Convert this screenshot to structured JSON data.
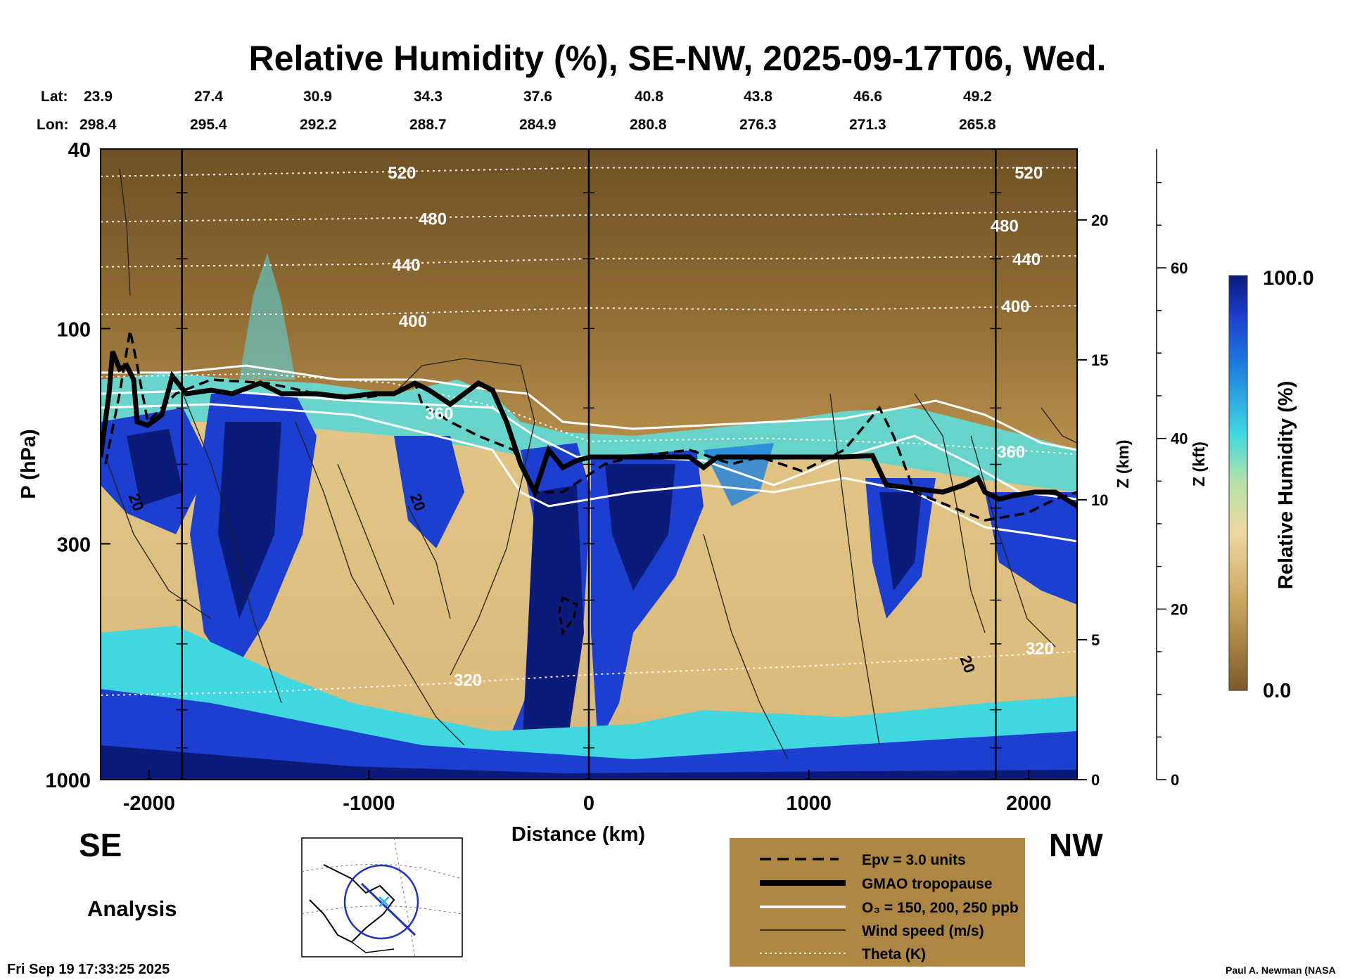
{
  "title": "Relative Humidity (%), SE-NW, 2025-09-17T06, Wed.",
  "lat_label": "Lat:",
  "lon_label": "Lon:",
  "lat_values": [
    "23.9",
    "27.4",
    "30.9",
    "34.3",
    "37.6",
    "40.8",
    "43.8",
    "46.6",
    "49.2"
  ],
  "lon_values": [
    "298.4",
    "295.4",
    "292.2",
    "288.7",
    "284.9",
    "280.8",
    "276.3",
    "271.3",
    "265.8"
  ],
  "side_left": "SE",
  "side_right": "NW",
  "analysis_label": "Analysis",
  "timestamp": "Fri Sep 19 17:33:25 2025",
  "credit": "Paul A. Newman (NASA",
  "colors": {
    "dry": "#7a5a28",
    "tan": "#e4c98c",
    "cyan": "#3fd8e0",
    "blue": "#1c3fd0",
    "navy": "#0c1a7a",
    "legend_bg": "#ad8642"
  },
  "legend": [
    {
      "label": "Epv = 3.0 units",
      "style": "dashed-black"
    },
    {
      "label": "GMAO tropopause",
      "style": "thick-black"
    },
    {
      "label": "O₃ = 150, 200, 250 ppb",
      "style": "white"
    },
    {
      "label": "Wind speed (m/s)",
      "style": "thin-black"
    },
    {
      "label": "Theta (K)",
      "style": "dotted-white"
    }
  ],
  "chart_data": {
    "type": "heatmap",
    "title": "Relative Humidity (%), SE-NW, 2025-09-17T06, Wed.",
    "xlabel": "Distance (km)",
    "ylabel": "P (hPa)",
    "y2label": "Z (km)",
    "y3label": "Z (kft)",
    "colorbar_label": "Relative Humidity (%)",
    "colorbar_range": [
      0.0,
      100.0
    ],
    "colorbar_tick_labels": [
      "100.0",
      "0.0"
    ],
    "xlim": [
      -2220,
      2220
    ],
    "x_ticks": [
      -2000,
      -1000,
      0,
      1000,
      2000
    ],
    "x_tick_labels": [
      "-2000",
      "-1000",
      "0",
      "1000",
      "2000"
    ],
    "ylim": [
      1000,
      40
    ],
    "y_scale": "log",
    "y_ticks": [
      40,
      100,
      300,
      1000
    ],
    "y_tick_labels": [
      "40",
      "100",
      "300",
      "1000"
    ],
    "z_km_ticks": [
      0,
      5,
      10,
      15,
      20
    ],
    "z_km_tick_labels": [
      "0",
      "5",
      "10",
      "15",
      "20"
    ],
    "z_kft_ticks": [
      0,
      20,
      40,
      60
    ],
    "z_kft_tick_labels": [
      "0",
      "20",
      "40",
      "60"
    ],
    "section_lines_km": [
      -1850,
      0,
      1850
    ],
    "theta_contours": [
      {
        "level": 520,
        "points": [
          [
            -2220,
            46
          ],
          [
            -1000,
            45
          ],
          [
            0,
            44
          ],
          [
            1000,
            44
          ],
          [
            2220,
            44
          ]
        ],
        "labels": [
          [
            "520",
            -850,
            45
          ],
          [
            "520",
            2000,
            45
          ]
        ]
      },
      {
        "level": 480,
        "points": [
          [
            -2220,
            58
          ],
          [
            -1000,
            57
          ],
          [
            0,
            56
          ],
          [
            1000,
            56
          ],
          [
            2220,
            55
          ]
        ],
        "labels": [
          [
            "480",
            -710,
            57
          ],
          [
            "480",
            1890,
            59
          ]
        ]
      },
      {
        "level": 440,
        "points": [
          [
            -2220,
            73
          ],
          [
            -1000,
            72
          ],
          [
            0,
            70
          ],
          [
            1000,
            70
          ],
          [
            2220,
            69
          ]
        ],
        "labels": [
          [
            "440",
            -830,
            72
          ],
          [
            "440",
            1990,
            70
          ]
        ]
      },
      {
        "level": 400,
        "points": [
          [
            -2220,
            93
          ],
          [
            -1000,
            93
          ],
          [
            0,
            90
          ],
          [
            1000,
            91
          ],
          [
            2220,
            89
          ]
        ],
        "labels": [
          [
            "400",
            -800,
            96
          ],
          [
            "400",
            1940,
            89
          ]
        ]
      },
      {
        "level": 360,
        "points": [
          [
            -2220,
            128
          ],
          [
            -1500,
            126
          ],
          [
            -900,
            132
          ],
          [
            -400,
            150
          ],
          [
            0,
            178
          ],
          [
            800,
            175
          ],
          [
            1500,
            180
          ],
          [
            2220,
            190
          ]
        ],
        "labels": [
          [
            "360",
            -680,
            154
          ],
          [
            "360",
            1920,
            187
          ]
        ]
      },
      {
        "level": 320,
        "points": [
          [
            -2220,
            650
          ],
          [
            -1500,
            640
          ],
          [
            -600,
            610
          ],
          [
            0,
            585
          ],
          [
            1000,
            560
          ],
          [
            2220,
            520
          ]
        ],
        "labels": [
          [
            "320",
            -550,
            600
          ],
          [
            "320",
            2050,
            510
          ]
        ]
      }
    ],
    "wind_speed_labels": [
      [
        "20",
        -2080,
        245
      ],
      [
        "20",
        -800,
        245
      ],
      [
        "20",
        1700,
        560
      ]
    ]
  }
}
